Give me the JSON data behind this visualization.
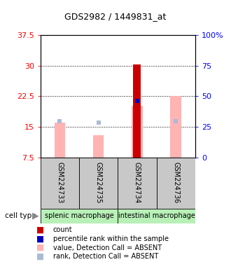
{
  "title": "GDS2982 / 1449831_at",
  "samples": [
    "GSM224733",
    "GSM224735",
    "GSM224734",
    "GSM224736"
  ],
  "x_positions": [
    0.5,
    1.5,
    2.5,
    3.5
  ],
  "xlim": [
    0,
    4
  ],
  "ylim_left": [
    7.5,
    37.5
  ],
  "ylim_right": [
    0,
    100
  ],
  "yticks_left": [
    7.5,
    15.0,
    22.5,
    30.0,
    37.5
  ],
  "yticks_right": [
    0,
    25,
    50,
    75,
    100
  ],
  "ytick_labels_left": [
    "7.5",
    "15",
    "22.5",
    "30",
    "37.5"
  ],
  "ytick_labels_right": [
    "0",
    "25",
    "50",
    "75",
    "100%"
  ],
  "pink_bar_values": [
    16.0,
    13.0,
    20.2,
    22.5
  ],
  "lightblue_square_values": [
    16.3,
    16.1,
    null,
    16.3
  ],
  "red_bar_value": [
    null,
    null,
    30.2,
    null
  ],
  "blue_square_value": [
    null,
    null,
    21.3,
    null
  ],
  "pink_bar_color": "#ffb3b3",
  "lightblue_color": "#aabbd6",
  "red_bar_color": "#cc0000",
  "blue_square_color": "#0000bb",
  "bar_width": 0.28,
  "red_bar_width": 0.2,
  "group1_label": "splenic macrophage",
  "group2_label": "intestinal macrophage",
  "group1_color": "#c8c8c8",
  "group2_color": "#b8f0b8",
  "cell_type_label": "cell type",
  "legend_items": [
    "count",
    "percentile rank within the sample",
    "value, Detection Call = ABSENT",
    "rank, Detection Call = ABSENT"
  ],
  "legend_colors": [
    "#cc0000",
    "#0000bb",
    "#ffb3b3",
    "#aabbd6"
  ],
  "title_fontsize": 9,
  "ytick_fontsize": 8,
  "sample_fontsize": 7,
  "group_fontsize": 7,
  "legend_fontsize": 7
}
